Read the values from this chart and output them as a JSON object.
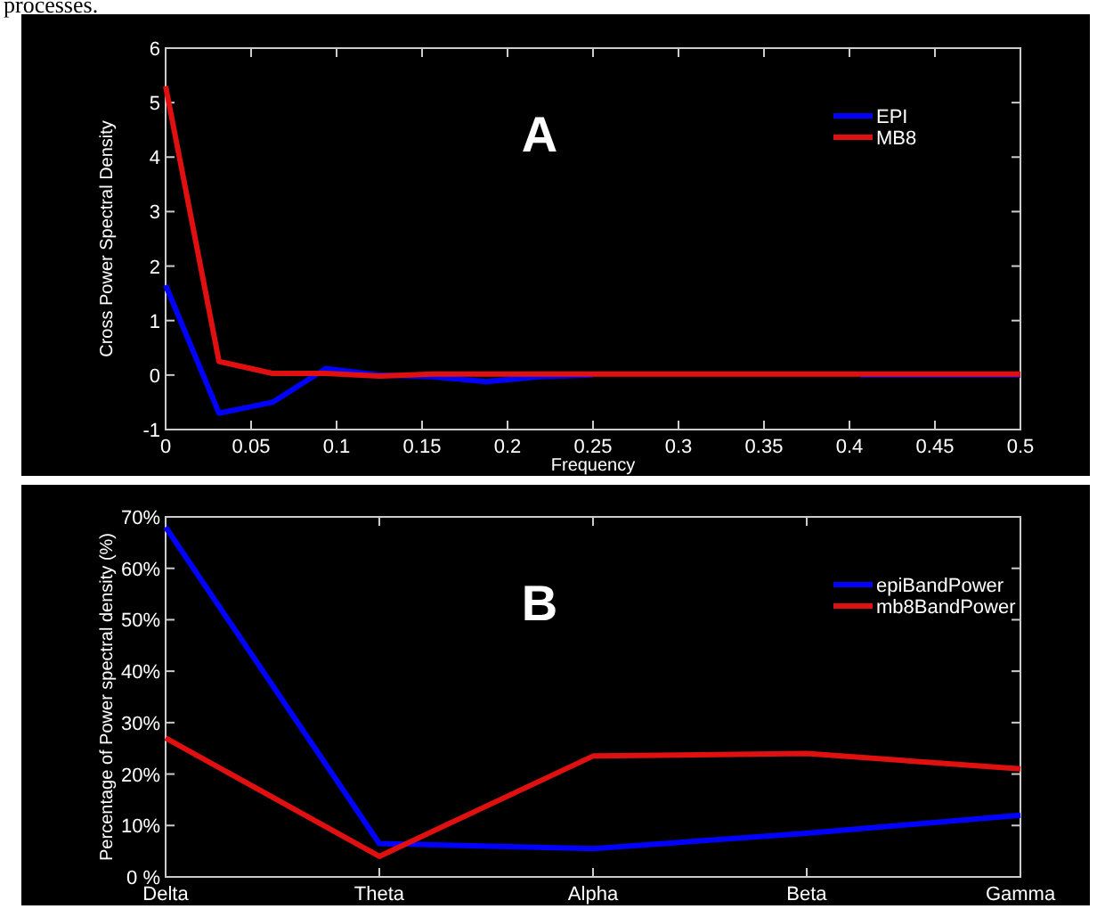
{
  "chart_data": [
    {
      "type": "line",
      "xlabel": "Frequency",
      "ylabel": "Cross Power Spectral Density",
      "annotations": [
        "processes.",
        "A"
      ],
      "x": [
        0,
        0.03125,
        0.0625,
        0.09375,
        0.125,
        0.15625,
        0.1875,
        0.21875,
        0.25,
        0.28125,
        0.3125,
        0.34375,
        0.375,
        0.40625,
        0.4375,
        0.46875,
        0.5
      ],
      "series": [
        {
          "name": "EPI",
          "color": "#0000ff",
          "values": [
            1.65,
            -0.7,
            -0.5,
            0.12,
            0.0,
            -0.03,
            -0.12,
            -0.03,
            0,
            null,
            null,
            null,
            null,
            0,
            0,
            0,
            0
          ]
        },
        {
          "name": "MB8",
          "color": "#e01010",
          "values": [
            5.3,
            0.25,
            0.03,
            0.03,
            -0.02,
            0.02,
            0.02,
            0.02,
            0.02,
            0.02,
            0.02,
            0.02,
            0.02,
            0.02,
            0.02,
            0.02,
            0.02
          ]
        }
      ],
      "xlim": [
        0,
        0.5
      ],
      "xticks": [
        0,
        0.05,
        0.1,
        0.15,
        0.2,
        0.25,
        0.3,
        0.35,
        0.4,
        0.45,
        0.5
      ],
      "ylim": [
        -1,
        6
      ],
      "yticks": [
        -1,
        0,
        1,
        2,
        3,
        4,
        5,
        6
      ],
      "grid": false,
      "legend": "top right",
      "marker": "none",
      "line_style": "solid"
    },
    {
      "type": "line",
      "ylabel": "Percentage of Power spectral density (%)",
      "annotations": [
        "B"
      ],
      "categories": [
        "Delta",
        "Theta",
        "Alpha",
        "Beta",
        "Gamma"
      ],
      "series": [
        {
          "name": "epiBandPower",
          "color": "#0000ff",
          "values": [
            68,
            6.5,
            5.5,
            8.5,
            12
          ]
        },
        {
          "name": "mb8BandPower",
          "color": "#e01010",
          "values": [
            27,
            4,
            23.5,
            24,
            21
          ]
        }
      ],
      "ylim": [
        0,
        70
      ],
      "yticks": [
        {
          "value": 0,
          "label": "0 %"
        },
        {
          "value": 10,
          "label": "10%"
        },
        {
          "value": 20,
          "label": "20%"
        },
        {
          "value": 30,
          "label": "30%"
        },
        {
          "value": 40,
          "label": "40%"
        },
        {
          "value": 50,
          "label": "50%"
        },
        {
          "value": 60,
          "label": "60%"
        },
        {
          "value": 70,
          "label": "70%"
        }
      ],
      "grid": false,
      "legend": "top right",
      "marker": "none",
      "line_style": "solid"
    }
  ]
}
